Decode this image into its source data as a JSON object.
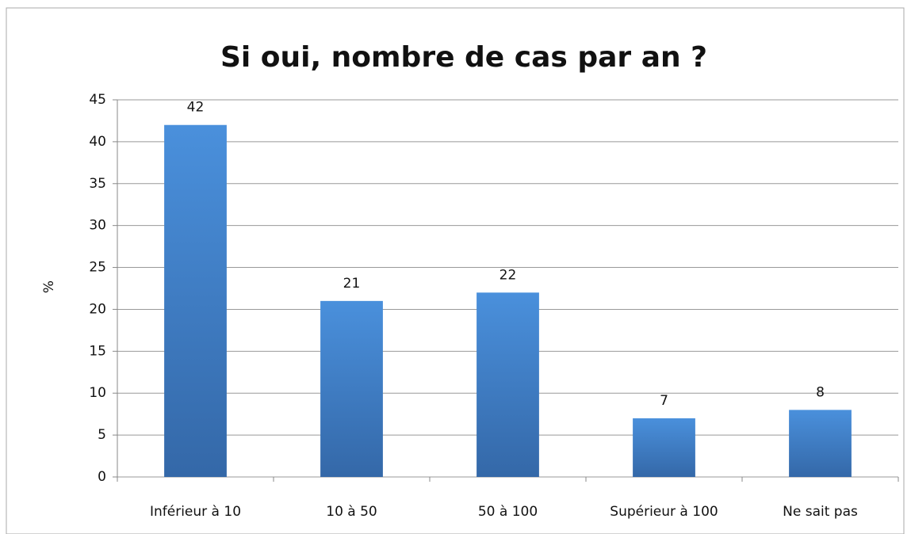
{
  "chart_data": {
    "type": "bar",
    "title": "Si oui, nombre de cas par an ?",
    "y_label": "%",
    "categories": [
      "Inférieur à 10",
      "10 à 50",
      "50 à 100",
      "Supérieur à 100",
      "Ne sait pas"
    ],
    "values": [
      42,
      21,
      22,
      7,
      8
    ],
    "color": "#3f80c8",
    "ylim": [
      0,
      45
    ],
    "yticks": [
      0,
      5,
      10,
      15,
      20,
      25,
      30,
      35,
      40,
      45
    ],
    "grid": true
  }
}
